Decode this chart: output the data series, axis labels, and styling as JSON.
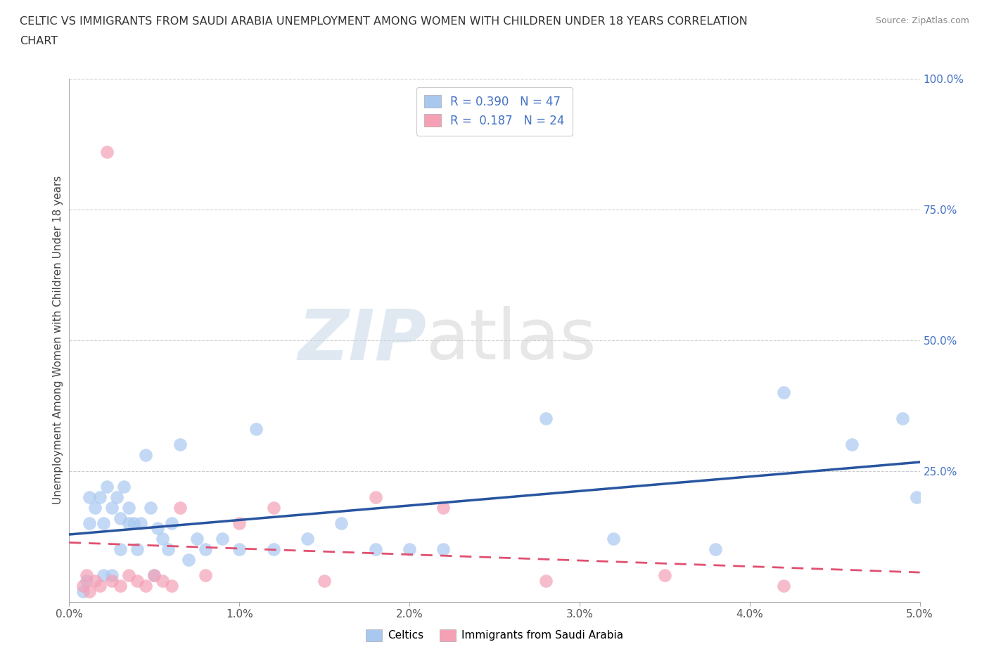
{
  "title_line1": "CELTIC VS IMMIGRANTS FROM SAUDI ARABIA UNEMPLOYMENT AMONG WOMEN WITH CHILDREN UNDER 18 YEARS CORRELATION",
  "title_line2": "CHART",
  "source": "Source: ZipAtlas.com",
  "ylabel": "Unemployment Among Women with Children Under 18 years",
  "xlim": [
    0.0,
    0.05
  ],
  "ylim": [
    0.0,
    1.0
  ],
  "xticks": [
    0.0,
    0.01,
    0.02,
    0.03,
    0.04,
    0.05
  ],
  "xtick_labels": [
    "0.0%",
    "1.0%",
    "2.0%",
    "3.0%",
    "4.0%",
    "5.0%"
  ],
  "yticks": [
    0.0,
    0.25,
    0.5,
    0.75,
    1.0
  ],
  "ytick_labels": [
    "",
    "25.0%",
    "50.0%",
    "75.0%",
    "100.0%"
  ],
  "celtics_R": 0.39,
  "celtics_N": 47,
  "saudi_R": 0.187,
  "saudi_N": 24,
  "celtics_color": "#a8c8f0",
  "saudi_color": "#f5a0b5",
  "celtics_line_color": "#2855a0",
  "saudi_line_color": "#e05070",
  "text_color_blue": "#4472c4",
  "grid_color": "#cccccc",
  "celtics_x": [
    0.0008,
    0.001,
    0.0012,
    0.0012,
    0.0015,
    0.0018,
    0.002,
    0.002,
    0.0022,
    0.0025,
    0.0025,
    0.0028,
    0.003,
    0.003,
    0.0032,
    0.0035,
    0.0035,
    0.0038,
    0.004,
    0.0042,
    0.0045,
    0.0048,
    0.005,
    0.0052,
    0.0055,
    0.0058,
    0.006,
    0.0065,
    0.007,
    0.0075,
    0.008,
    0.009,
    0.01,
    0.011,
    0.012,
    0.014,
    0.016,
    0.018,
    0.02,
    0.022,
    0.028,
    0.032,
    0.038,
    0.042,
    0.046,
    0.049,
    0.0498
  ],
  "celtics_y": [
    0.02,
    0.04,
    0.15,
    0.2,
    0.18,
    0.2,
    0.15,
    0.05,
    0.22,
    0.18,
    0.05,
    0.2,
    0.16,
    0.1,
    0.22,
    0.15,
    0.18,
    0.15,
    0.1,
    0.15,
    0.28,
    0.18,
    0.05,
    0.14,
    0.12,
    0.1,
    0.15,
    0.3,
    0.08,
    0.12,
    0.1,
    0.12,
    0.1,
    0.33,
    0.1,
    0.12,
    0.15,
    0.1,
    0.1,
    0.1,
    0.35,
    0.12,
    0.1,
    0.4,
    0.3,
    0.35,
    0.2
  ],
  "saudi_x": [
    0.0008,
    0.001,
    0.0012,
    0.0015,
    0.0018,
    0.0022,
    0.0025,
    0.003,
    0.0035,
    0.004,
    0.0045,
    0.005,
    0.0055,
    0.006,
    0.0065,
    0.008,
    0.01,
    0.012,
    0.015,
    0.018,
    0.022,
    0.028,
    0.035,
    0.042
  ],
  "saudi_y": [
    0.03,
    0.05,
    0.02,
    0.04,
    0.03,
    0.86,
    0.04,
    0.03,
    0.05,
    0.04,
    0.03,
    0.05,
    0.04,
    0.03,
    0.18,
    0.05,
    0.15,
    0.18,
    0.04,
    0.2,
    0.18,
    0.04,
    0.05,
    0.03
  ]
}
